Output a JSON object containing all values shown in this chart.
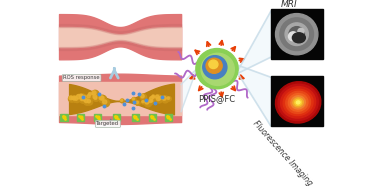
{
  "bg_color": "#ffffff",
  "vessel_outer_color": "#e07070",
  "vessel_wall_color": "#e87878",
  "vessel_inner_color": "#f0c0c0",
  "plaque_base": "#c8960c",
  "plaque_bubble_dark": "#b07808",
  "plaque_bubble_light": "#e8b840",
  "plaque_blue_dot": "#60a0e0",
  "nano_green_outer": "#8ad060",
  "nano_green_mid": "#a0d878",
  "nano_blue": "#4888c0",
  "nano_orange": "#e89820",
  "nano_yellow": "#f8d040",
  "spike_color": "#e84008",
  "tentacle_color": "#b068c8",
  "label_ppis": "PPIS@FC",
  "label_mri": "MRI",
  "label_fluor": "Fluorescence Imaging",
  "label_ros": "ROS response",
  "label_targeted": "Targeted",
  "line_color": "#c8dce8",
  "arrow_color": "#b8d8e8",
  "green_nano_color": "#70c050",
  "green_nano_dot": "#408030"
}
